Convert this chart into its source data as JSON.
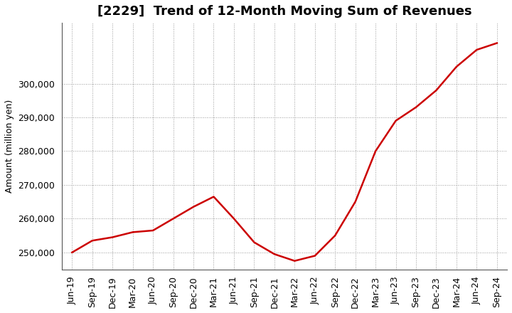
{
  "title": "[2229]  Trend of 12-Month Moving Sum of Revenues",
  "ylabel": "Amount (million yen)",
  "line_color": "#cc0000",
  "background_color": "#ffffff",
  "plot_background": "#ffffff",
  "x_labels": [
    "Jun-19",
    "Sep-19",
    "Dec-19",
    "Mar-20",
    "Jun-20",
    "Sep-20",
    "Dec-20",
    "Mar-21",
    "Jun-21",
    "Sep-21",
    "Dec-21",
    "Mar-22",
    "Jun-22",
    "Sep-22",
    "Dec-22",
    "Mar-23",
    "Jun-23",
    "Sep-23",
    "Dec-23",
    "Mar-24",
    "Jun-24",
    "Sep-24"
  ],
  "values": [
    250000,
    253500,
    254500,
    256000,
    256500,
    260000,
    263500,
    266500,
    260000,
    253000,
    249500,
    247500,
    249000,
    255000,
    265000,
    280000,
    289000,
    293000,
    298000,
    305000,
    310000,
    312000
  ],
  "ylim": [
    245000,
    318000
  ],
  "yticks": [
    250000,
    260000,
    270000,
    280000,
    290000,
    300000
  ],
  "title_fontsize": 13,
  "axis_label_fontsize": 9,
  "tick_fontsize": 9,
  "line_width": 1.8,
  "grid_color": "#999999",
  "grid_style": ":"
}
